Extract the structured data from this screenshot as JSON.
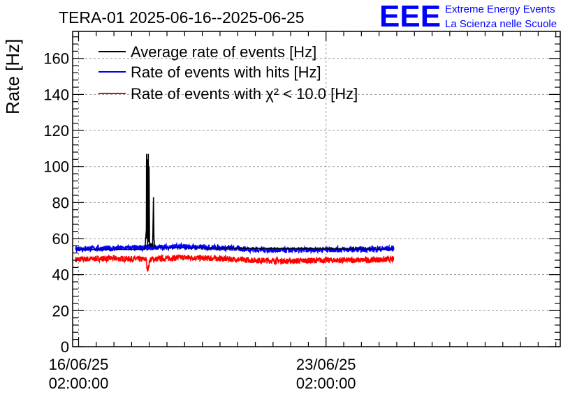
{
  "chart_data": {
    "type": "line",
    "title": "TERA-01 2025-06-16--2025-06-25",
    "ylabel": "Rate [Hz]",
    "xlabel": "",
    "ylim": [
      0,
      175
    ],
    "yticks": [
      0,
      20,
      40,
      60,
      80,
      100,
      120,
      140,
      160
    ],
    "xlim": [
      "2025-06-15T21:58:00",
      "2025-06-29T17:00:00"
    ],
    "xticks": [
      {
        "date": "2025-06-16T02:00:00",
        "line1": "16/06/25",
        "line2": "02:00:00"
      },
      {
        "date": "2025-06-23T02:00:00",
        "line1": "23/06/25",
        "line2": "02:00:00"
      }
    ],
    "grid": true,
    "legend_position": "top-left",
    "series": [
      {
        "name": "Average rate of events [Hz]",
        "color": "#000000",
        "x": [
          "2025-06-16T00:00:00",
          "2025-06-17T23:00:00",
          "2025-06-18T00:00:00",
          "2025-06-18T00:10:00",
          "2025-06-18T00:20:00",
          "2025-06-18T00:40:00",
          "2025-06-18T00:50:00",
          "2025-06-18T01:20:00",
          "2025-06-18T01:40:00",
          "2025-06-18T01:50:00",
          "2025-06-18T02:10:00",
          "2025-06-18T02:40:00",
          "2025-06-18T03:00:00",
          "2025-06-18T03:30:00",
          "2025-06-18T04:00:00",
          "2025-06-18T04:20:00",
          "2025-06-18T04:50:00",
          "2025-06-18T05:10:00",
          "2025-06-18T05:40:00",
          "2025-06-18T06:30:00",
          "2025-06-18T12:00:00",
          "2025-06-25T00:00:00"
        ],
        "y": [
          54,
          54,
          65,
          107,
          60,
          104,
          55,
          107,
          58,
          100,
          56,
          57,
          56,
          57,
          56,
          57,
          83,
          60,
          56,
          55,
          55,
          54
        ]
      },
      {
        "name": "Rate of events with hits [Hz]",
        "color": "#0000ff",
        "x": [
          "2025-06-16T00:00:00",
          "2025-06-17T00:00:00",
          "2025-06-18T00:00:00",
          "2025-06-19T00:00:00",
          "2025-06-20T00:00:00",
          "2025-06-21T00:00:00",
          "2025-06-22T00:00:00",
          "2025-06-23T00:00:00",
          "2025-06-24T00:00:00",
          "2025-06-25T00:00:00"
        ],
        "y": [
          54.5,
          54.5,
          55,
          55.5,
          55,
          54,
          53.5,
          54,
          54,
          54.5
        ]
      },
      {
        "name": "Rate of events with χ² < 10.0 [Hz]",
        "color": "#ff0000",
        "x": [
          "2025-06-16T00:00:00",
          "2025-06-17T00:00:00",
          "2025-06-18T00:00:00",
          "2025-06-18T00:30:00",
          "2025-06-18T01:30:00",
          "2025-06-18T02:30:00",
          "2025-06-19T00:00:00",
          "2025-06-20T00:00:00",
          "2025-06-21T00:00:00",
          "2025-06-22T00:00:00",
          "2025-06-23T00:00:00",
          "2025-06-24T00:00:00",
          "2025-06-25T00:00:00"
        ],
        "y": [
          48.5,
          49,
          48.5,
          43,
          44,
          48.5,
          49.5,
          49,
          48,
          47.5,
          48,
          48,
          48.5
        ]
      }
    ]
  },
  "logo": {
    "mark": "EEE",
    "line1": "Extreme Energy Events",
    "line2": "La Scienza nelle Scuole",
    "color": "#0000ff"
  }
}
